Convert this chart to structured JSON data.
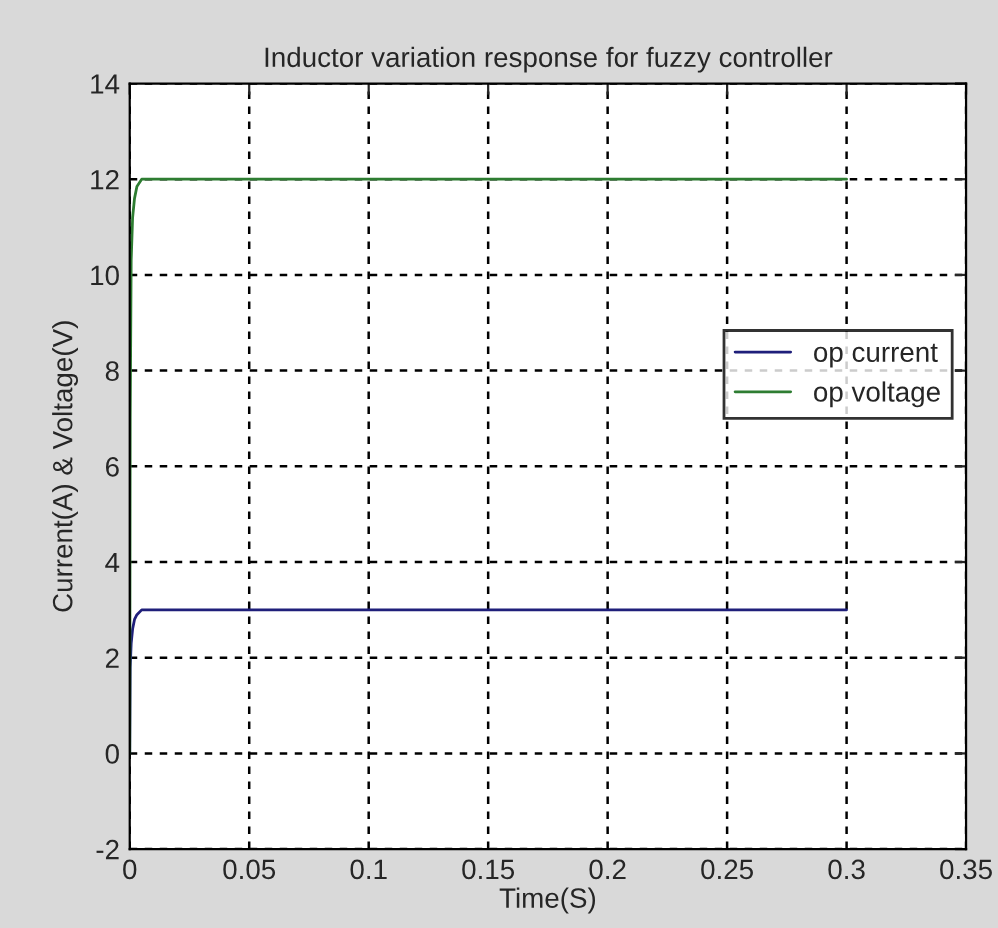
{
  "chart_data": {
    "type": "line",
    "title": "Inductor variation response for fuzzy controller",
    "xlabel": "Time(S)",
    "ylabel": "Current(A) & Voltage(V)",
    "series": [
      {
        "name": "op current",
        "color": "#1f1f7a",
        "x": [
          0,
          0.0002,
          0.0006,
          0.0012,
          0.002,
          0.003,
          0.005,
          0.3
        ],
        "values": [
          0,
          1.8,
          2.3,
          2.6,
          2.8,
          2.9,
          3,
          3
        ]
      },
      {
        "name": "op voltage",
        "color": "#2e7d32",
        "x": [
          0,
          0.0002,
          0.0006,
          0.0012,
          0.002,
          0.003,
          0.005,
          0.3
        ],
        "values": [
          0,
          7,
          10.3,
          11.2,
          11.6,
          11.85,
          12,
          12
        ]
      }
    ],
    "xlim": [
      0,
      0.35
    ],
    "xticks": [
      0,
      0.05,
      0.1,
      0.15,
      0.2,
      0.25,
      0.3,
      0.35
    ],
    "ylim": [
      -2,
      14
    ],
    "yticks": [
      -2,
      0,
      2,
      4,
      6,
      8,
      10,
      12,
      14
    ],
    "grid": true,
    "legend": "right"
  }
}
